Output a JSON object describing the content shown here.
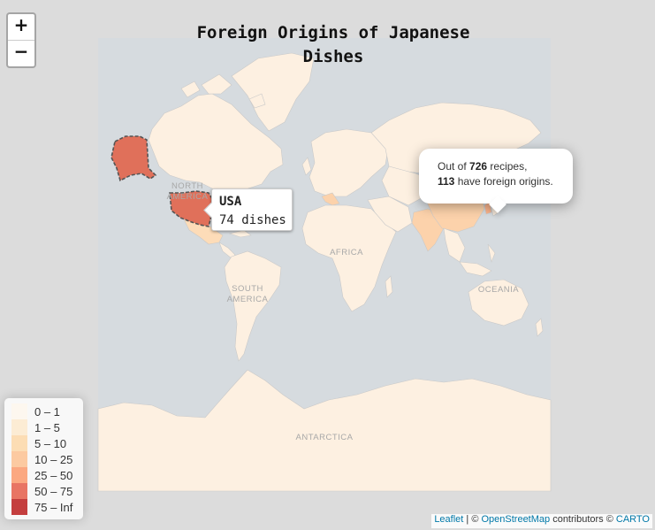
{
  "title": "Foreign Origins of Japanese Dishes",
  "zoom": {
    "in_label": "+",
    "out_label": "−"
  },
  "map_labels": {
    "north_america_1": "NORTH",
    "north_america_2": "AMERICA",
    "south_america_1": "SOUTH",
    "south_america_2": "AMERICA",
    "africa": "AFRICA",
    "oceania": "OCEANIA",
    "antarctica": "ANTARCTICA"
  },
  "hover_tooltip": {
    "country": "USA",
    "value": "74 dishes"
  },
  "popup": {
    "pre1": "Out of ",
    "total": "726",
    "post1": " recipes,",
    "foreign": "113",
    "post2": " have foreign origins."
  },
  "legend": [
    {
      "label": "0 – 1",
      "color": "#fff7ec"
    },
    {
      "label": "1 – 5",
      "color": "#fee8c8"
    },
    {
      "label": "5 – 10",
      "color": "#fdd49e"
    },
    {
      "label": "10 – 25",
      "color": "#fdbb84"
    },
    {
      "label": "25 – 50",
      "color": "#fc8d59"
    },
    {
      "label": "50 – 75",
      "color": "#e34a33"
    },
    {
      "label": "75 – Inf",
      "color": "#b30000"
    }
  ],
  "attribution": {
    "leaflet": "Leaflet",
    "sep": " | © ",
    "osm": "OpenStreetMap",
    "contrib": " contributors © ",
    "carto": "CARTO"
  },
  "colors": {
    "land": "#fdf0e1",
    "ocean": "#d6dbdf",
    "usa": "#e0705a",
    "china": "#fcd2ab",
    "india": "#fcd2ab",
    "italy": "#fcd2ab",
    "mexico": "#fddcb8",
    "korea": "#fcb48c",
    "border": "#c9c9c9",
    "label": "#a8a8a8"
  }
}
